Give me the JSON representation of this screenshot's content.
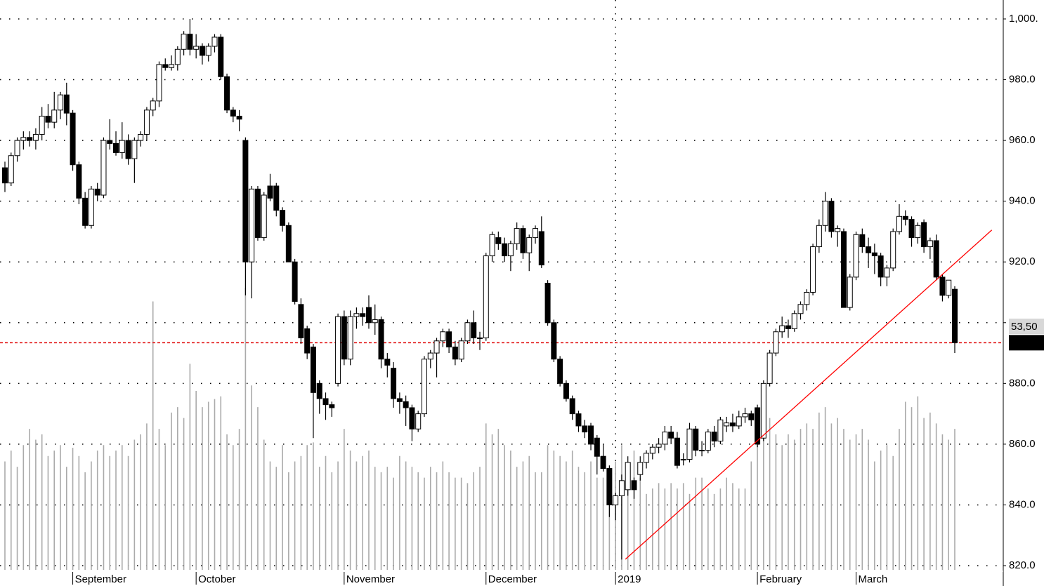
{
  "chart_data": {
    "type": "candlestick",
    "ylim": [
      820,
      1000
    ],
    "yticks": [
      {
        "value": 1000,
        "label": "1,000."
      },
      {
        "value": 980,
        "label": "980.0"
      },
      {
        "value": 960,
        "label": "960.0"
      },
      {
        "value": 940,
        "label": "940.0"
      },
      {
        "value": 920,
        "label": "920.0"
      },
      {
        "value": 900,
        "label": ""
      },
      {
        "value": 880,
        "label": "880.0"
      },
      {
        "value": 860,
        "label": "860.0"
      },
      {
        "value": 840,
        "label": "840.0"
      },
      {
        "value": 820,
        "label": "820.0"
      }
    ],
    "xticks": [
      {
        "value": 11,
        "label": "September"
      },
      {
        "value": 31,
        "label": "October"
      },
      {
        "value": 55,
        "label": "November"
      },
      {
        "value": 78,
        "label": "December"
      },
      {
        "value": 99,
        "label": "2019"
      },
      {
        "value": 122,
        "label": "February"
      },
      {
        "value": 138,
        "label": "March"
      }
    ],
    "year_divider": 99,
    "grid": true,
    "up_color": "#ffffff",
    "down_color": "#000000",
    "ohlc": [
      [
        951,
        953,
        943,
        946
      ],
      [
        946,
        956,
        945,
        955
      ],
      [
        955,
        961,
        953,
        960
      ],
      [
        960,
        963,
        957,
        961
      ],
      [
        961,
        963,
        958,
        960
      ],
      [
        960,
        964,
        957,
        962
      ],
      [
        962,
        971,
        960,
        968
      ],
      [
        968,
        972,
        964,
        966
      ],
      [
        966,
        976,
        964,
        970
      ],
      [
        970,
        976,
        967,
        975
      ],
      [
        975,
        979,
        965,
        969
      ],
      [
        969,
        970,
        950,
        952
      ],
      [
        952,
        953,
        939,
        941
      ],
      [
        941,
        943,
        931,
        932
      ],
      [
        932,
        945,
        931,
        944
      ],
      [
        944,
        946,
        940,
        942
      ],
      [
        942,
        961,
        941,
        960
      ],
      [
        960,
        967,
        957,
        959
      ],
      [
        959,
        963,
        955,
        956
      ],
      [
        956,
        966,
        954,
        960
      ],
      [
        960,
        962,
        952,
        954
      ],
      [
        954,
        961,
        946,
        960
      ],
      [
        960,
        963,
        958,
        962
      ],
      [
        962,
        971,
        960,
        970
      ],
      [
        970,
        974,
        968,
        973
      ],
      [
        973,
        986,
        971,
        985
      ],
      [
        985,
        987,
        983,
        984
      ],
      [
        984,
        988,
        983,
        985
      ],
      [
        985,
        991,
        983,
        990
      ],
      [
        990,
        996,
        988,
        995
      ],
      [
        995,
        1000,
        988,
        990
      ],
      [
        990,
        995,
        987,
        991
      ],
      [
        991,
        992,
        985,
        988
      ],
      [
        988,
        992,
        986,
        991
      ],
      [
        991,
        995,
        989,
        994
      ],
      [
        994,
        995,
        980,
        981
      ],
      [
        981,
        982,
        969,
        970
      ],
      [
        970,
        971,
        966,
        968
      ],
      [
        968,
        970,
        963,
        967
      ],
      [
        960,
        961,
        909,
        920
      ],
      [
        920,
        945,
        908,
        944
      ],
      [
        944,
        945,
        927,
        928
      ],
      [
        928,
        943,
        927,
        942
      ],
      [
        945,
        949,
        940,
        941
      ],
      [
        945,
        946,
        935,
        937
      ],
      [
        937,
        938,
        930,
        932
      ],
      [
        932,
        933,
        920,
        920
      ],
      [
        920,
        921,
        906,
        907
      ],
      [
        906,
        908,
        893,
        895
      ],
      [
        898,
        899,
        888,
        890
      ],
      [
        892,
        893,
        862,
        877
      ],
      [
        880,
        881,
        870,
        875
      ],
      [
        875,
        877,
        868,
        873
      ],
      [
        873,
        874,
        869,
        872
      ],
      [
        880,
        903,
        879,
        902
      ],
      [
        902,
        904,
        886,
        888
      ],
      [
        888,
        904,
        886,
        902
      ],
      [
        902,
        905,
        898,
        903
      ],
      [
        903,
        905,
        899,
        902
      ],
      [
        905,
        909,
        898,
        900
      ],
      [
        900,
        906,
        896,
        901
      ],
      [
        901,
        902,
        885,
        888
      ],
      [
        888,
        890,
        882,
        886
      ],
      [
        885,
        887,
        872,
        875
      ],
      [
        875,
        877,
        870,
        874
      ],
      [
        874,
        876,
        866,
        872
      ],
      [
        872,
        873,
        861,
        865
      ],
      [
        865,
        871,
        864,
        870
      ],
      [
        870,
        889,
        869,
        888
      ],
      [
        888,
        891,
        885,
        890
      ],
      [
        890,
        895,
        882,
        894
      ],
      [
        894,
        898,
        892,
        897
      ],
      [
        897,
        898,
        890,
        892
      ],
      [
        892,
        894,
        886,
        888
      ],
      [
        888,
        895,
        887,
        894
      ],
      [
        894,
        901,
        893,
        900
      ],
      [
        900,
        904,
        893,
        895
      ],
      [
        895,
        897,
        891,
        895
      ],
      [
        895,
        923,
        894,
        922
      ],
      [
        922,
        930,
        920,
        929
      ],
      [
        928,
        930,
        924,
        926
      ],
      [
        926,
        928,
        920,
        922
      ],
      [
        922,
        927,
        917,
        926
      ],
      [
        926,
        933,
        924,
        931
      ],
      [
        931,
        932,
        921,
        923
      ],
      [
        923,
        929,
        917,
        928
      ],
      [
        928,
        932,
        926,
        931
      ],
      [
        930,
        935,
        918,
        919
      ],
      [
        913,
        914,
        899,
        900
      ],
      [
        900,
        901,
        887,
        888
      ],
      [
        888,
        889,
        879,
        880
      ],
      [
        880,
        881,
        874,
        875
      ],
      [
        875,
        876,
        868,
        870
      ],
      [
        870,
        871,
        864,
        866
      ],
      [
        866,
        868,
        862,
        864
      ],
      [
        866,
        867,
        858,
        860
      ],
      [
        862,
        863,
        850,
        856
      ],
      [
        856,
        860,
        851,
        852
      ],
      [
        852,
        853,
        836,
        840
      ],
      [
        840,
        844,
        835,
        843
      ],
      [
        843,
        850,
        822,
        848
      ],
      [
        845,
        856,
        843,
        854
      ],
      [
        848,
        849,
        842,
        845
      ],
      [
        850,
        856,
        848,
        854
      ],
      [
        854,
        858,
        852,
        857
      ],
      [
        857,
        860,
        855,
        859
      ],
      [
        859,
        862,
        857,
        860
      ],
      [
        860,
        866,
        858,
        864
      ],
      [
        864,
        866,
        860,
        862
      ],
      [
        862,
        864,
        852,
        853
      ],
      [
        855,
        857,
        853,
        855
      ],
      [
        855,
        867,
        854,
        865
      ],
      [
        865,
        866,
        856,
        858
      ],
      [
        858,
        861,
        856,
        858
      ],
      [
        858,
        865,
        857,
        864
      ],
      [
        864,
        866,
        859,
        861
      ],
      [
        861,
        869,
        860,
        868
      ],
      [
        866,
        869,
        864,
        867
      ],
      [
        867,
        870,
        864,
        866
      ],
      [
        866,
        871,
        865,
        869
      ],
      [
        869,
        872,
        867,
        870
      ],
      [
        870,
        871,
        866,
        868
      ],
      [
        872,
        873,
        859,
        860
      ],
      [
        862,
        881,
        861,
        880
      ],
      [
        880,
        891,
        879,
        890
      ],
      [
        890,
        898,
        889,
        897
      ],
      [
        897,
        902,
        895,
        899
      ],
      [
        899,
        901,
        895,
        898
      ],
      [
        898,
        904,
        897,
        903
      ],
      [
        903,
        907,
        901,
        906
      ],
      [
        906,
        911,
        904,
        910
      ],
      [
        910,
        926,
        909,
        925
      ],
      [
        925,
        934,
        923,
        932
      ],
      [
        932,
        943,
        930,
        940
      ],
      [
        940,
        941,
        928,
        930
      ],
      [
        930,
        932,
        925,
        931
      ],
      [
        930,
        931,
        905,
        905
      ],
      [
        905,
        916,
        904,
        915
      ],
      [
        915,
        930,
        914,
        929
      ],
      [
        929,
        931,
        923,
        925
      ],
      [
        925,
        928,
        918,
        923
      ],
      [
        923,
        926,
        916,
        922
      ],
      [
        922,
        923,
        912,
        915
      ],
      [
        915,
        919,
        912,
        918
      ],
      [
        918,
        931,
        917,
        930
      ],
      [
        930,
        939,
        929,
        935
      ],
      [
        935,
        937,
        932,
        934
      ],
      [
        934,
        935,
        925,
        928
      ],
      [
        928,
        933,
        926,
        932
      ],
      [
        933,
        934,
        923,
        925
      ],
      [
        925,
        928,
        921,
        927
      ],
      [
        927,
        929,
        914,
        915
      ],
      [
        915,
        916,
        907,
        909
      ],
      [
        909,
        914,
        908,
        914
      ],
      [
        911,
        912,
        890,
        893.4
      ]
    ],
    "volume": [
      40,
      44,
      38,
      46,
      52,
      48,
      50,
      42,
      44,
      46,
      38,
      45,
      42,
      36,
      40,
      44,
      46,
      42,
      44,
      46,
      42,
      48,
      50,
      54,
      99,
      52,
      46,
      58,
      60,
      56,
      76,
      66,
      60,
      62,
      63,
      64,
      50,
      46,
      52,
      104,
      68,
      60,
      48,
      40,
      38,
      46,
      36,
      40,
      42,
      46,
      47,
      38,
      42,
      36,
      40,
      52,
      44,
      40,
      42,
      44,
      38,
      36,
      38,
      34,
      42,
      40,
      38,
      36,
      34,
      38,
      36,
      40,
      36,
      34,
      34,
      32,
      36,
      38,
      54,
      50,
      52,
      46,
      44,
      38,
      40,
      42,
      36,
      36,
      46,
      44,
      42,
      40,
      44,
      38,
      36,
      40,
      34,
      34,
      38,
      40,
      46,
      40,
      44,
      34,
      28,
      30,
      32,
      30,
      32,
      30,
      32,
      28,
      34,
      34,
      30,
      28,
      30,
      34,
      32,
      30,
      30,
      40,
      48,
      52,
      56,
      50,
      46,
      50,
      48,
      52,
      54,
      52,
      58,
      60,
      54,
      56,
      52,
      48,
      50,
      52,
      48,
      40,
      44,
      46,
      42,
      52,
      62,
      60,
      64,
      56,
      58,
      54,
      50,
      48,
      52
    ],
    "volume_lim": [
      0,
      110
    ],
    "volume_color": "#aaaaaa",
    "trendline": {
      "x": [
        100.6,
        160
      ],
      "y": [
        822.1,
        930.5
      ],
      "color": "#ff0000"
    },
    "last_price": 893.4,
    "last_price_color": "#e00000",
    "indicator_label": "53,50"
  }
}
